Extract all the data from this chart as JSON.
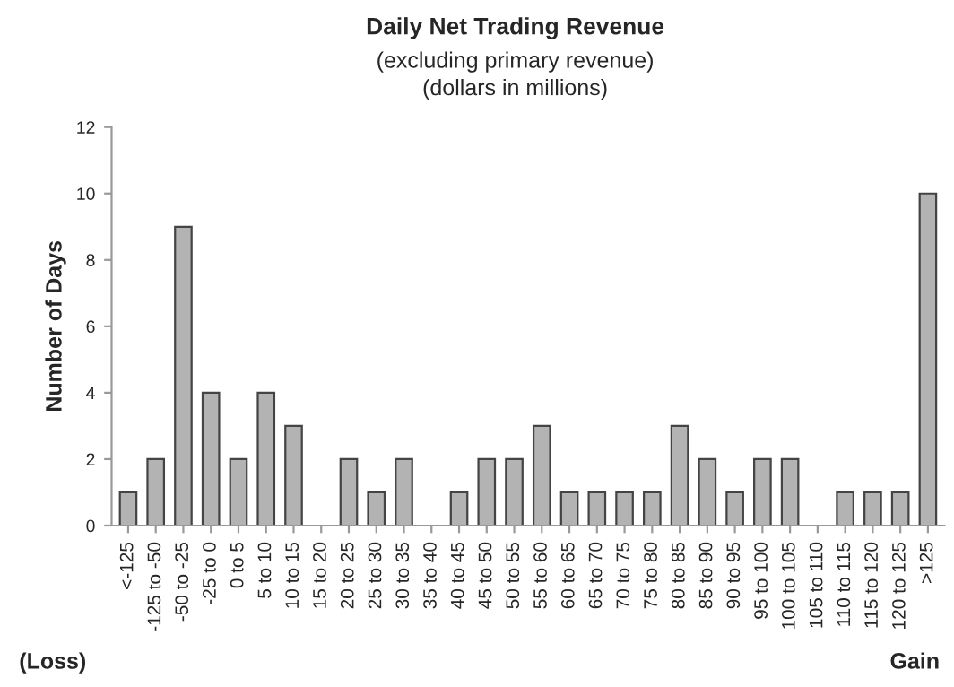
{
  "chart_data": {
    "type": "bar",
    "title": "Daily Net Trading Revenue",
    "subtitle": "(excluding primary revenue)\n(dollars in millions)",
    "ylabel": "Number of Days",
    "categories": [
      "<-125",
      "-125 to -50",
      "-50 to -25",
      "-25 to 0",
      "0 to 5",
      "5 to 10",
      "10 to 15",
      "15 to 20",
      "20 to 25",
      "25 to 30",
      "30 to 35",
      "35 to 40",
      "40 to 45",
      "45 to 50",
      "50 to 55",
      "55 to 60",
      "60 to 65",
      "65 to 70",
      "70 to 75",
      "75 to 80",
      "80 to 85",
      "85 to 90",
      "90 to 95",
      "95 to 100",
      "100 to 105",
      "105 to 110",
      "110 to 115",
      "115 to 120",
      "120 to 125",
      ">125"
    ],
    "values": [
      1,
      2,
      9,
      4,
      2,
      4,
      3,
      0,
      2,
      1,
      2,
      0,
      1,
      2,
      2,
      3,
      1,
      1,
      1,
      1,
      3,
      2,
      1,
      2,
      2,
      0,
      1,
      1,
      1,
      10
    ],
    "color": "#b3b3b3",
    "ylim": [
      0,
      12
    ],
    "yticks": [
      0,
      2,
      4,
      6,
      8,
      10,
      12
    ],
    "grid": false,
    "legend": false,
    "annotations": [
      "(Loss)",
      "Gain"
    ]
  }
}
